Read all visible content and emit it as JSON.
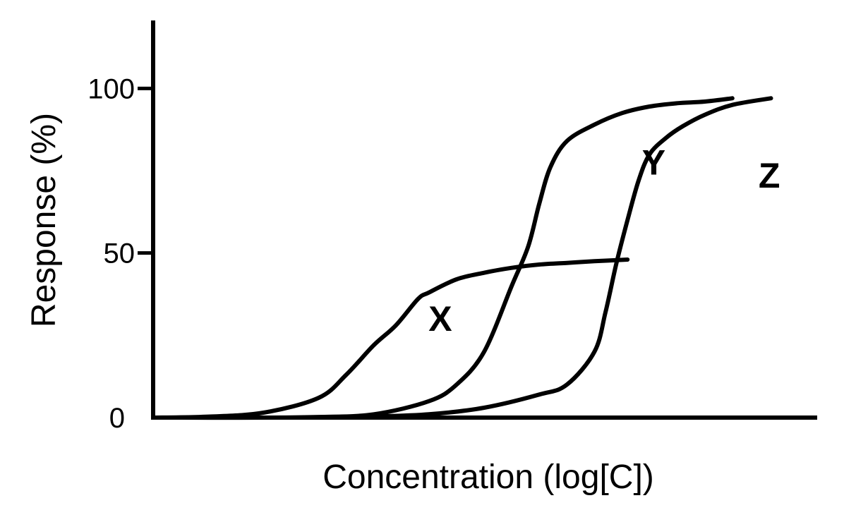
{
  "chart_data": {
    "type": "line",
    "xlabel": "Concentration (log[C])",
    "ylabel": "Response (%)",
    "ylim": [
      0,
      120
    ],
    "y_ticks": [
      {
        "value": 0,
        "label": "0"
      },
      {
        "value": 50,
        "label": "50"
      },
      {
        "value": 100,
        "label": "100"
      }
    ],
    "x_ticks_shown": false,
    "grid": false,
    "legend": "none",
    "colors": {
      "line": "#000000",
      "background": "#ffffff"
    },
    "series": [
      {
        "label": "X",
        "x": [
          0,
          1,
          2,
          3,
          3.5,
          4,
          4.4,
          4.8,
          5,
          5.5,
          6,
          6.5,
          7,
          7.5,
          8,
          8.6
        ],
        "y": [
          0,
          0.3,
          1.5,
          6,
          13,
          22,
          28,
          36,
          38,
          42,
          44,
          45.5,
          46.5,
          47,
          47.5,
          48
        ]
      },
      {
        "label": "Y",
        "x": [
          0,
          2,
          3,
          4,
          5,
          5.5,
          6,
          6.5,
          6.8,
          7,
          7.2,
          7.5,
          8,
          8.5,
          9,
          9.5,
          10,
          10.5
        ],
        "y": [
          0,
          0,
          0.2,
          1,
          5,
          10,
          20,
          40,
          52,
          65,
          76,
          84,
          89,
          92.5,
          94.5,
          95.5,
          96,
          97
        ]
      },
      {
        "label": "Z",
        "x": [
          0,
          3,
          4,
          5,
          6,
          7,
          7.5,
          8,
          8.2,
          8.4,
          8.6,
          8.8,
          9,
          9.3,
          9.6,
          10,
          10.5,
          11.2
        ],
        "y": [
          0,
          0,
          0.3,
          1,
          3,
          7,
          10,
          20,
          32,
          47,
          60,
          72,
          80,
          85,
          88.5,
          92,
          95,
          97
        ]
      }
    ]
  }
}
